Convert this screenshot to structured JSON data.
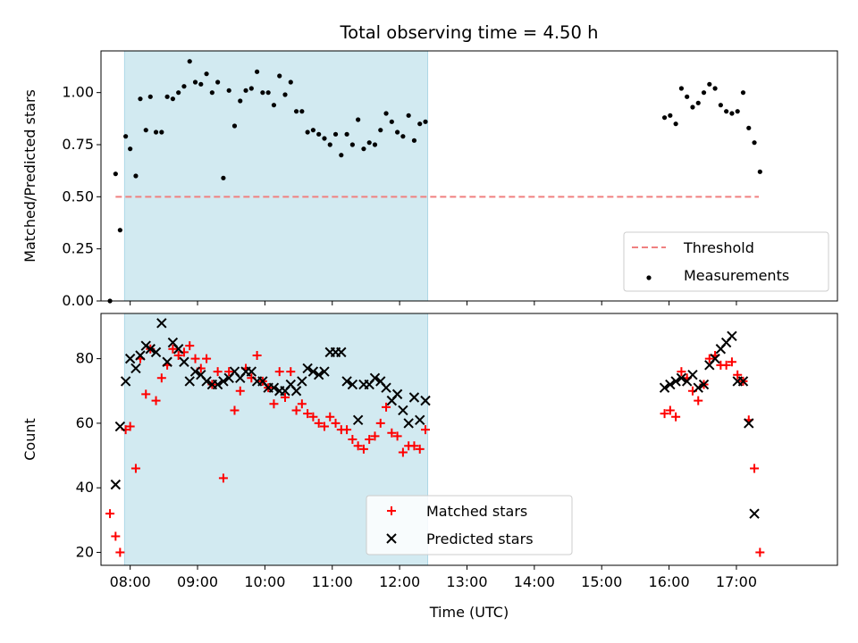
{
  "chart_data": [
    {
      "type": "scatter",
      "title": "Total observing time = 4.50 h",
      "ylabel": "Matched/Predicted stars",
      "xlabel": "",
      "xlim": [
        "07:34",
        "18:30"
      ],
      "ylim": [
        0,
        1.2
      ],
      "yticks": [
        0.0,
        0.25,
        0.5,
        0.75,
        1.0
      ],
      "ytick_labels": [
        "0.00",
        "0.25",
        "0.50",
        "0.75",
        "1.00"
      ],
      "shaded_region": {
        "x": [
          "07:55",
          "12:25"
        ],
        "color": "#add8e6"
      },
      "threshold": {
        "name": "Threshold",
        "y": 0.5,
        "x": [
          "07:47",
          "17:20"
        ],
        "color": "#f08080",
        "style": "dashed"
      },
      "legend": {
        "position": "lower right",
        "entries": [
          "Threshold",
          "Measurements"
        ]
      },
      "series": [
        {
          "name": "Measurements",
          "color": "#000000",
          "marker": "dot",
          "points": [
            [
              "07:42",
              0.0
            ],
            [
              "07:47",
              0.61
            ],
            [
              "07:51",
              0.34
            ],
            [
              "07:56",
              0.79
            ],
            [
              "08:00",
              0.73
            ],
            [
              "08:05",
              0.6
            ],
            [
              "08:09",
              0.97
            ],
            [
              "08:14",
              0.82
            ],
            [
              "08:18",
              0.98
            ],
            [
              "08:23",
              0.81
            ],
            [
              "08:28",
              0.81
            ],
            [
              "08:33",
              0.98
            ],
            [
              "08:38",
              0.97
            ],
            [
              "08:43",
              1.0
            ],
            [
              "08:48",
              1.03
            ],
            [
              "08:53",
              1.15
            ],
            [
              "08:58",
              1.05
            ],
            [
              "09:03",
              1.04
            ],
            [
              "09:08",
              1.09
            ],
            [
              "09:13",
              1.0
            ],
            [
              "09:18",
              1.05
            ],
            [
              "09:23",
              0.59
            ],
            [
              "09:28",
              1.01
            ],
            [
              "09:33",
              0.84
            ],
            [
              "09:38",
              0.96
            ],
            [
              "09:43",
              1.01
            ],
            [
              "09:48",
              1.02
            ],
            [
              "09:53",
              1.1
            ],
            [
              "09:58",
              1.0
            ],
            [
              "10:03",
              1.0
            ],
            [
              "10:08",
              0.94
            ],
            [
              "10:13",
              1.08
            ],
            [
              "10:18",
              0.99
            ],
            [
              "10:23",
              1.05
            ],
            [
              "10:28",
              0.91
            ],
            [
              "10:33",
              0.91
            ],
            [
              "10:38",
              0.81
            ],
            [
              "10:43",
              0.82
            ],
            [
              "10:48",
              0.8
            ],
            [
              "10:53",
              0.78
            ],
            [
              "10:58",
              0.75
            ],
            [
              "11:03",
              0.8
            ],
            [
              "11:08",
              0.7
            ],
            [
              "11:13",
              0.8
            ],
            [
              "11:18",
              0.75
            ],
            [
              "11:23",
              0.87
            ],
            [
              "11:28",
              0.73
            ],
            [
              "11:33",
              0.76
            ],
            [
              "11:38",
              0.75
            ],
            [
              "11:43",
              0.82
            ],
            [
              "11:48",
              0.9
            ],
            [
              "11:53",
              0.86
            ],
            [
              "11:58",
              0.81
            ],
            [
              "12:03",
              0.79
            ],
            [
              "12:08",
              0.89
            ],
            [
              "12:13",
              0.77
            ],
            [
              "12:18",
              0.85
            ],
            [
              "12:23",
              0.86
            ],
            [
              "15:56",
              0.88
            ],
            [
              "16:01",
              0.89
            ],
            [
              "16:06",
              0.85
            ],
            [
              "16:11",
              1.02
            ],
            [
              "16:16",
              0.98
            ],
            [
              "16:21",
              0.93
            ],
            [
              "16:26",
              0.95
            ],
            [
              "16:31",
              1.0
            ],
            [
              "16:36",
              1.04
            ],
            [
              "16:41",
              1.02
            ],
            [
              "16:46",
              0.94
            ],
            [
              "16:51",
              0.91
            ],
            [
              "16:56",
              0.9
            ],
            [
              "17:01",
              0.91
            ],
            [
              "17:06",
              1.0
            ],
            [
              "17:11",
              0.83
            ],
            [
              "17:16",
              0.76
            ],
            [
              "17:21",
              0.62
            ]
          ]
        }
      ]
    },
    {
      "type": "scatter",
      "title": "",
      "xlabel": "Time (UTC)",
      "ylabel": "Count",
      "xlim": [
        "07:34",
        "18:30"
      ],
      "ylim": [
        16,
        94
      ],
      "yticks": [
        20,
        40,
        60,
        80
      ],
      "ytick_labels": [
        "20",
        "40",
        "60",
        "80"
      ],
      "xticks": [
        "08:00",
        "09:00",
        "10:00",
        "11:00",
        "12:00",
        "13:00",
        "14:00",
        "15:00",
        "16:00",
        "17:00"
      ],
      "shaded_region": {
        "x": [
          "07:55",
          "12:25"
        ],
        "color": "#add8e6"
      },
      "legend": {
        "position": "lower center",
        "entries": [
          "Matched stars",
          "Predicted stars"
        ]
      },
      "series": [
        {
          "name": "Matched stars",
          "color": "#ff0000",
          "marker": "plus",
          "points": [
            [
              "07:42",
              32
            ],
            [
              "07:47",
              25
            ],
            [
              "07:51",
              20
            ],
            [
              "07:56",
              58
            ],
            [
              "08:00",
              59
            ],
            [
              "08:05",
              46
            ],
            [
              "08:09",
              80
            ],
            [
              "08:14",
              69
            ],
            [
              "08:18",
              83
            ],
            [
              "08:23",
              67
            ],
            [
              "08:28",
              74
            ],
            [
              "08:33",
              78
            ],
            [
              "08:38",
              83
            ],
            [
              "08:43",
              81
            ],
            [
              "08:48",
              82
            ],
            [
              "08:53",
              84
            ],
            [
              "08:58",
              80
            ],
            [
              "09:03",
              77
            ],
            [
              "09:08",
              80
            ],
            [
              "09:13",
              72
            ],
            [
              "09:18",
              76
            ],
            [
              "09:23",
              43
            ],
            [
              "09:28",
              76
            ],
            [
              "09:33",
              64
            ],
            [
              "09:38",
              70
            ],
            [
              "09:43",
              77
            ],
            [
              "09:48",
              74
            ],
            [
              "09:53",
              81
            ],
            [
              "09:58",
              73
            ],
            [
              "10:03",
              71
            ],
            [
              "10:08",
              66
            ],
            [
              "10:13",
              76
            ],
            [
              "10:18",
              68
            ],
            [
              "10:23",
              76
            ],
            [
              "10:28",
              64
            ],
            [
              "10:33",
              66
            ],
            [
              "10:38",
              63
            ],
            [
              "10:43",
              62
            ],
            [
              "10:48",
              60
            ],
            [
              "10:53",
              59
            ],
            [
              "10:58",
              62
            ],
            [
              "11:03",
              60
            ],
            [
              "11:08",
              58
            ],
            [
              "11:13",
              58
            ],
            [
              "11:18",
              55
            ],
            [
              "11:23",
              53
            ],
            [
              "11:28",
              52
            ],
            [
              "11:33",
              55
            ],
            [
              "11:38",
              56
            ],
            [
              "11:43",
              60
            ],
            [
              "11:48",
              65
            ],
            [
              "11:53",
              57
            ],
            [
              "11:58",
              56
            ],
            [
              "12:03",
              51
            ],
            [
              "12:08",
              53
            ],
            [
              "12:13",
              53
            ],
            [
              "12:18",
              52
            ],
            [
              "12:23",
              58
            ],
            [
              "15:56",
              63
            ],
            [
              "16:01",
              64
            ],
            [
              "16:06",
              62
            ],
            [
              "16:11",
              76
            ],
            [
              "16:16",
              74
            ],
            [
              "16:21",
              70
            ],
            [
              "16:26",
              67
            ],
            [
              "16:31",
              72
            ],
            [
              "16:36",
              80
            ],
            [
              "16:41",
              81
            ],
            [
              "16:46",
              78
            ],
            [
              "16:51",
              78
            ],
            [
              "16:56",
              79
            ],
            [
              "17:01",
              75
            ],
            [
              "17:06",
              73
            ],
            [
              "17:11",
              61
            ],
            [
              "17:16",
              46
            ],
            [
              "17:21",
              20
            ]
          ]
        },
        {
          "name": "Predicted stars",
          "color": "#000000",
          "marker": "x",
          "points": [
            [
              "07:47",
              41
            ],
            [
              "07:51",
              59
            ],
            [
              "07:56",
              73
            ],
            [
              "08:00",
              80
            ],
            [
              "08:05",
              77
            ],
            [
              "08:09",
              81
            ],
            [
              "08:14",
              84
            ],
            [
              "08:18",
              83
            ],
            [
              "08:23",
              82
            ],
            [
              "08:28",
              91
            ],
            [
              "08:33",
              79
            ],
            [
              "08:38",
              85
            ],
            [
              "08:43",
              83
            ],
            [
              "08:48",
              79
            ],
            [
              "08:53",
              73
            ],
            [
              "08:58",
              76
            ],
            [
              "09:03",
              75
            ],
            [
              "09:08",
              73
            ],
            [
              "09:13",
              72
            ],
            [
              "09:18",
              72
            ],
            [
              "09:23",
              73
            ],
            [
              "09:28",
              74
            ],
            [
              "09:33",
              76
            ],
            [
              "09:38",
              74
            ],
            [
              "09:43",
              76
            ],
            [
              "09:48",
              76
            ],
            [
              "09:53",
              73
            ],
            [
              "09:58",
              73
            ],
            [
              "10:03",
              71
            ],
            [
              "10:08",
              71
            ],
            [
              "10:13",
              70
            ],
            [
              "10:18",
              70
            ],
            [
              "10:23",
              72
            ],
            [
              "10:28",
              70
            ],
            [
              "10:33",
              73
            ],
            [
              "10:38",
              77
            ],
            [
              "10:43",
              76
            ],
            [
              "10:48",
              75
            ],
            [
              "10:53",
              76
            ],
            [
              "10:58",
              82
            ],
            [
              "11:03",
              82
            ],
            [
              "11:08",
              82
            ],
            [
              "11:13",
              73
            ],
            [
              "11:18",
              72
            ],
            [
              "11:23",
              61
            ],
            [
              "11:28",
              72
            ],
            [
              "11:33",
              72
            ],
            [
              "11:38",
              74
            ],
            [
              "11:43",
              73
            ],
            [
              "11:48",
              71
            ],
            [
              "11:53",
              67
            ],
            [
              "11:58",
              69
            ],
            [
              "12:03",
              64
            ],
            [
              "12:08",
              60
            ],
            [
              "12:13",
              68
            ],
            [
              "12:18",
              61
            ],
            [
              "12:23",
              67
            ],
            [
              "15:56",
              71
            ],
            [
              "16:01",
              72
            ],
            [
              "16:06",
              73
            ],
            [
              "16:11",
              74
            ],
            [
              "16:16",
              73
            ],
            [
              "16:21",
              75
            ],
            [
              "16:26",
              71
            ],
            [
              "16:31",
              72
            ],
            [
              "16:36",
              78
            ],
            [
              "16:41",
              80
            ],
            [
              "16:46",
              83
            ],
            [
              "16:51",
              85
            ],
            [
              "16:56",
              87
            ],
            [
              "17:01",
              73
            ],
            [
              "17:06",
              73
            ],
            [
              "17:11",
              60
            ],
            [
              "17:16",
              32
            ]
          ]
        }
      ]
    }
  ]
}
